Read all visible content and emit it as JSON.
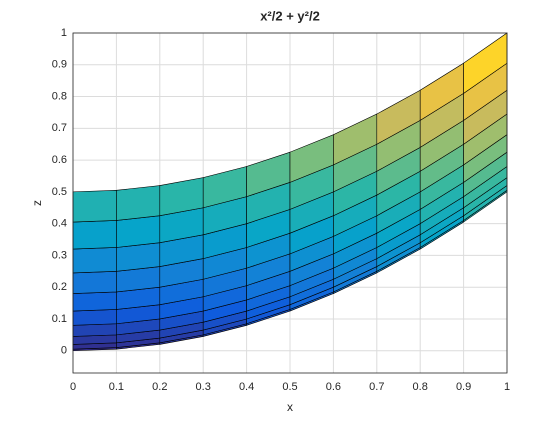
{
  "chart_data": {
    "type": "surface",
    "title": "x²/2 + y²/2",
    "xlabel": "x",
    "ylabel": "z",
    "x": [
      0,
      0.1,
      0.2,
      0.3,
      0.4,
      0.5,
      0.6,
      0.7,
      0.8,
      0.9,
      1
    ],
    "y": [
      0,
      0.1,
      0.2,
      0.3,
      0.4,
      0.5,
      0.6,
      0.7,
      0.8,
      0.9,
      1
    ],
    "z": [
      [
        0,
        0.005,
        0.02,
        0.045,
        0.08,
        0.125,
        0.18,
        0.245,
        0.32,
        0.405,
        0.5
      ],
      [
        0.005,
        0.01,
        0.025,
        0.05,
        0.085,
        0.13,
        0.185,
        0.25,
        0.325,
        0.41,
        0.505
      ],
      [
        0.02,
        0.025,
        0.04,
        0.065,
        0.1,
        0.145,
        0.2,
        0.265,
        0.34,
        0.425,
        0.52
      ],
      [
        0.045,
        0.05,
        0.065,
        0.09,
        0.125,
        0.17,
        0.225,
        0.29,
        0.365,
        0.45,
        0.545
      ],
      [
        0.08,
        0.085,
        0.1,
        0.125,
        0.16,
        0.205,
        0.26,
        0.325,
        0.4,
        0.485,
        0.58
      ],
      [
        0.125,
        0.13,
        0.145,
        0.17,
        0.205,
        0.25,
        0.305,
        0.37,
        0.445,
        0.53,
        0.625
      ],
      [
        0.18,
        0.185,
        0.2,
        0.225,
        0.26,
        0.305,
        0.36,
        0.425,
        0.5,
        0.585,
        0.68
      ],
      [
        0.245,
        0.25,
        0.265,
        0.29,
        0.325,
        0.37,
        0.425,
        0.49,
        0.565,
        0.65,
        0.745
      ],
      [
        0.32,
        0.325,
        0.34,
        0.365,
        0.4,
        0.445,
        0.5,
        0.565,
        0.64,
        0.725,
        0.82
      ],
      [
        0.405,
        0.41,
        0.425,
        0.45,
        0.485,
        0.53,
        0.585,
        0.65,
        0.725,
        0.81,
        0.905
      ],
      [
        0.5,
        0.505,
        0.52,
        0.545,
        0.58,
        0.625,
        0.68,
        0.745,
        0.82,
        0.905,
        1
      ]
    ],
    "colormap": [
      "#352a87",
      "#0f5cdd",
      "#1481d6",
      "#06a4ca",
      "#2eb7a4",
      "#87bf77",
      "#d1bb59",
      "#fec832",
      "#f9fb0e"
    ],
    "xlim": [
      0,
      1
    ],
    "xticks": [
      0,
      0.1,
      0.2,
      0.3,
      0.4,
      0.5,
      0.6,
      0.7,
      0.8,
      0.9,
      1
    ],
    "ylim": [
      -0.07,
      1
    ],
    "yticks": [
      0,
      0.1,
      0.2,
      0.3,
      0.4,
      0.5,
      0.6,
      0.7,
      0.8,
      0.9,
      1
    ],
    "grid": true
  }
}
